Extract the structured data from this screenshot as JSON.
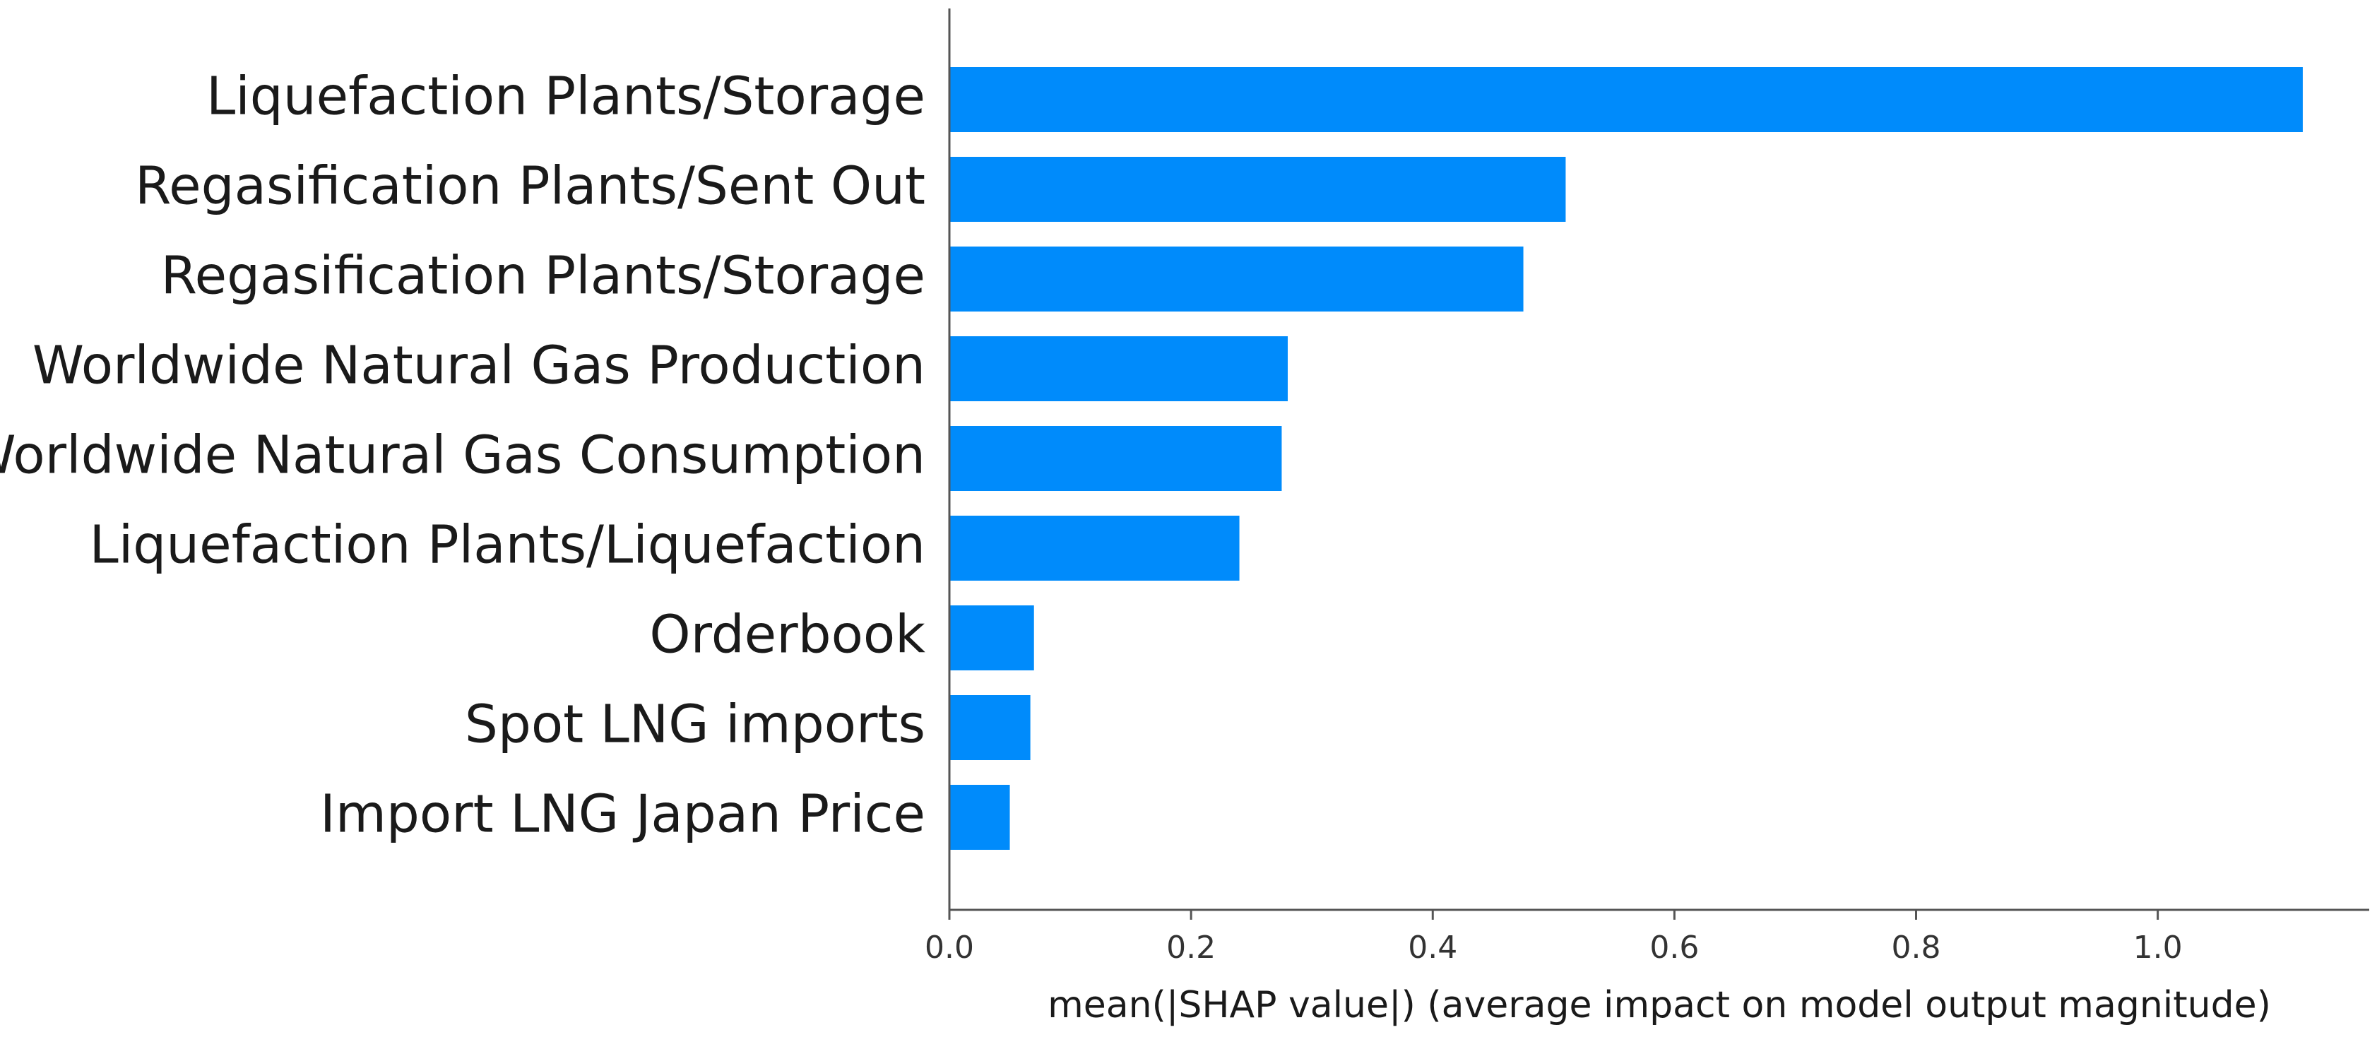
{
  "chart_data": {
    "type": "bar",
    "orientation": "horizontal",
    "categories": [
      "Liquefaction Plants/Storage",
      "Regasification Plants/Sent Out",
      "Regasification Plants/Storage",
      "Worldwide Natural Gas Production",
      "Worldwide Natural Gas Consumption",
      "Liquefaction Plants/Liquefaction",
      "Orderbook",
      "Spot LNG imports",
      "Import LNG Japan Price"
    ],
    "values": [
      1.12,
      0.51,
      0.475,
      0.28,
      0.275,
      0.24,
      0.07,
      0.067,
      0.05
    ],
    "xlabel": "mean(|SHAP value|) (average impact on model output magnitude)",
    "ylabel": "",
    "xlim": [
      0,
      1.175
    ],
    "xticks": [
      "0.0",
      "0.2",
      "0.4",
      "0.6",
      "0.8",
      "1.0"
    ],
    "xtick_values": [
      0,
      0.2,
      0.4,
      0.6,
      0.8,
      1.0
    ],
    "bar_color": "#008bfb",
    "grid": false
  }
}
